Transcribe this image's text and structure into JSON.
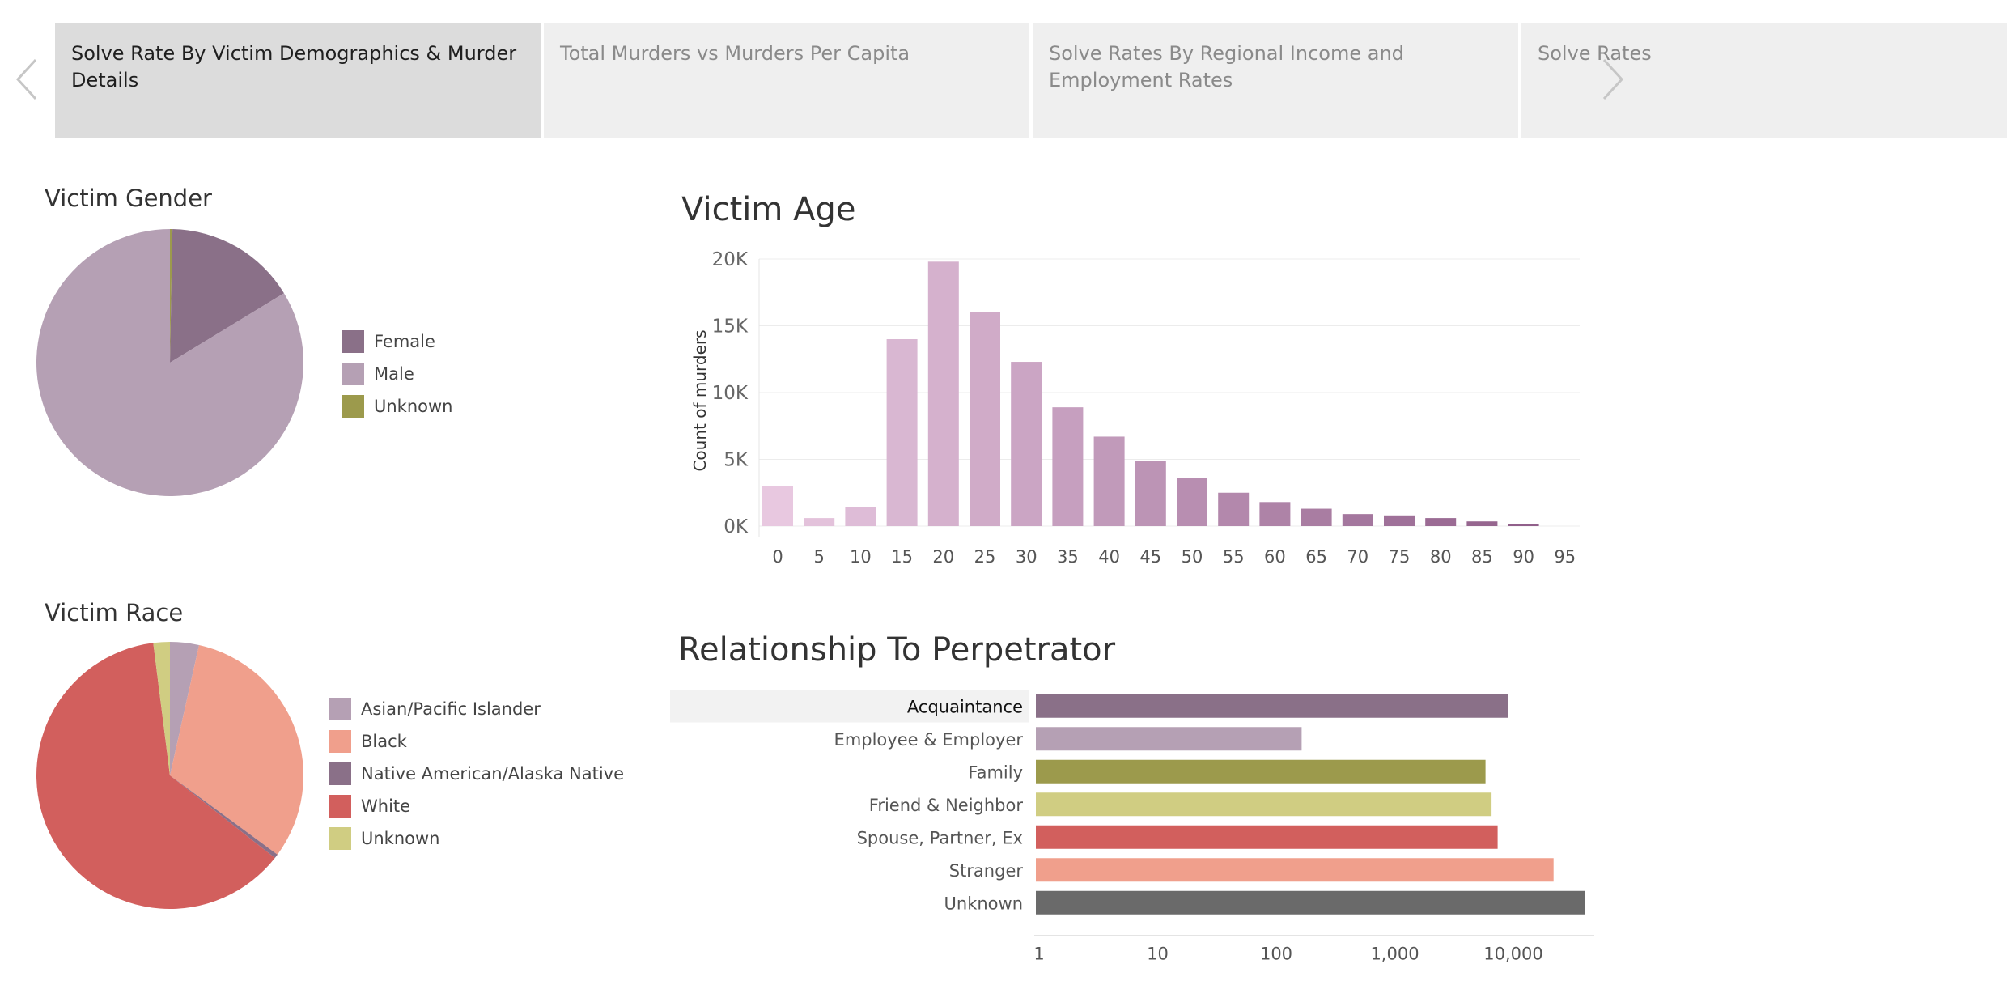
{
  "tabs": [
    {
      "label": "Solve Rate By Victim Demographics & Murder Details",
      "active": true
    },
    {
      "label": "Total Murders vs Murders Per Capita",
      "active": false
    },
    {
      "label": "Solve Rates By Regional Income and Employment Rates",
      "active": false
    },
    {
      "label": "Solve Rates",
      "active": false
    }
  ],
  "icons": {
    "prev": "chevron-left-icon",
    "next": "chevron-right-icon"
  },
  "sections": {
    "gender_title": "Victim Gender",
    "race_title": "Victim Race",
    "age_title": "Victim Age",
    "relationship_title": "Relationship To Perpetrator"
  },
  "chart_data": [
    {
      "type": "pie",
      "title": "Victim Gender",
      "legend_position": "right",
      "slices": [
        {
          "label": "Female",
          "value": 16.0,
          "color": "#8a7088"
        },
        {
          "label": "Male",
          "value": 83.7,
          "color": "#b5a0b4"
        },
        {
          "label": "Unknown",
          "value": 0.3,
          "color": "#9c9a4c"
        }
      ],
      "slice_order": [
        "Unknown",
        "Female",
        "Male"
      ]
    },
    {
      "type": "bar",
      "title": "Victim Age",
      "xlabel": "",
      "ylabel": "Count of murders",
      "ylim": [
        0,
        20000
      ],
      "yticks": [
        0,
        5000,
        10000,
        15000,
        20000
      ],
      "ytick_labels": [
        "0K",
        "5K",
        "10K",
        "15K",
        "20K"
      ],
      "grid": true,
      "categories": [
        "0",
        "5",
        "10",
        "15",
        "20",
        "25",
        "30",
        "35",
        "40",
        "45",
        "50",
        "55",
        "60",
        "65",
        "70",
        "75",
        "80",
        "85",
        "90",
        "95"
      ],
      "values": [
        3000,
        600,
        1400,
        14000,
        19800,
        16000,
        12300,
        8900,
        6700,
        4900,
        3600,
        2500,
        1800,
        1300,
        900,
        800,
        600,
        350,
        150,
        0
      ],
      "color_light": "#e8c8e0",
      "color_dark": "#8c5a86"
    },
    {
      "type": "bar",
      "orientation": "horizontal",
      "title": "Relationship To Perpetrator",
      "xscale": "log",
      "xlim": [
        1,
        60000
      ],
      "xticks": [
        1,
        10,
        100,
        1000,
        10000
      ],
      "xtick_labels": [
        "1",
        "10",
        "100",
        "1,000",
        "10,000"
      ],
      "categories": [
        "Acquaintance",
        "Employee & Employer",
        "Family",
        "Friend & Neighbor",
        "Spouse, Partner, Ex",
        "Stranger",
        "Unknown"
      ],
      "values": [
        9900,
        180,
        6400,
        7200,
        8100,
        24000,
        44000
      ],
      "colors": [
        "#8a7088",
        "#b5a0b4",
        "#9c9a4c",
        "#d0cd82",
        "#d25f5d",
        "#f09f8c",
        "#6a6a6a"
      ],
      "highlighted": "Acquaintance"
    },
    {
      "type": "pie",
      "title": "Victim Race",
      "legend_position": "right",
      "slices": [
        {
          "label": "Asian/Pacific Islander",
          "value": 3.5,
          "color": "#b5a0b4"
        },
        {
          "label": "Black",
          "value": 31.6,
          "color": "#f09f8c"
        },
        {
          "label": "Native American/Alaska Native",
          "value": 0.5,
          "color": "#8a7088"
        },
        {
          "label": "White",
          "value": 62.4,
          "color": "#d25f5d"
        },
        {
          "label": "Unknown",
          "value": 2.0,
          "color": "#d0cd82"
        }
      ],
      "slice_order": [
        "Asian/Pacific Islander",
        "Black",
        "Native American/Alaska Native",
        "White",
        "Unknown"
      ]
    }
  ]
}
